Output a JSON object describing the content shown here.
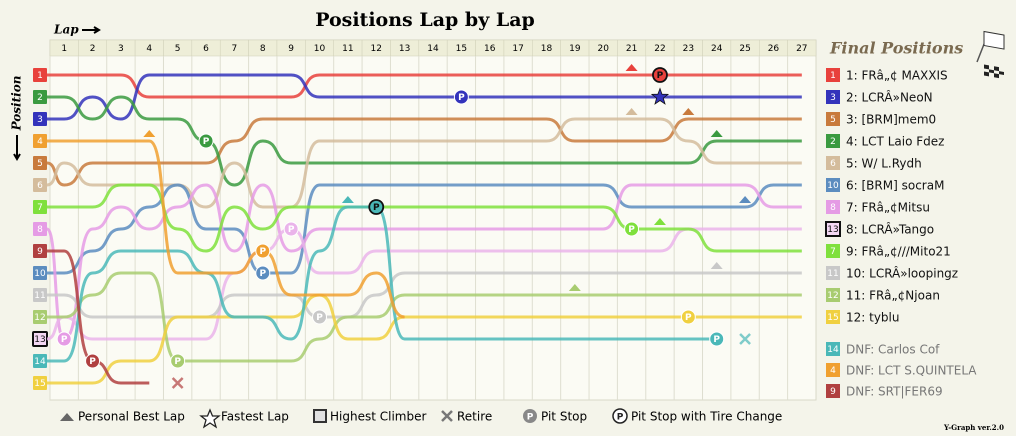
{
  "chart_data": {
    "type": "lap-chart",
    "title": "Positions Lap by Lap",
    "x_label": "Lap",
    "y_label": "Position",
    "legend_title": "Final Positions",
    "pit_symbol": "P",
    "footer": "Y-Graph ver.2.0",
    "x": [
      1,
      2,
      3,
      4,
      5,
      6,
      7,
      8,
      9,
      10,
      11,
      12,
      13,
      14,
      15,
      16,
      17,
      18,
      19,
      20,
      21,
      22,
      23,
      24,
      25,
      26,
      27
    ],
    "yticks": [
      1,
      2,
      3,
      4,
      5,
      6,
      7,
      8,
      9,
      10,
      11,
      12,
      13,
      14,
      15
    ],
    "key": [
      "Personal Best Lap",
      "Fastest Lap",
      "Highest Climber",
      "Retire",
      "Pit Stop",
      "Pit Stop with Tire Change"
    ],
    "series": [
      {
        "name": "1: FRâ„¢ MAXXIS",
        "grid": 1,
        "color": "#e8413c",
        "values": [
          1,
          1,
          1,
          2,
          2,
          2,
          2,
          2,
          2,
          1,
          1,
          1,
          1,
          1,
          1,
          1,
          1,
          1,
          1,
          1,
          1,
          1,
          1,
          1,
          1,
          1,
          1
        ],
        "best_laps": [
          21
        ],
        "tire_pit_laps": [
          22
        ]
      },
      {
        "name": "2: LCRÂ»NeoN",
        "grid": 3,
        "color": "#3333bb",
        "values": [
          3,
          2,
          3,
          1,
          1,
          1,
          1,
          1,
          1,
          2,
          2,
          2,
          2,
          2,
          2,
          2,
          2,
          2,
          2,
          2,
          2,
          2,
          2,
          2,
          2,
          2,
          2
        ],
        "pit_laps": [
          15
        ],
        "fastest_lap": 22
      },
      {
        "name": "3: [BRM]mem0",
        "grid": 5,
        "color": "#c87a3c",
        "values": [
          6,
          5,
          5,
          5,
          5,
          5,
          4,
          3,
          3,
          3,
          3,
          3,
          3,
          3,
          3,
          3,
          3,
          3,
          4,
          4,
          4,
          4,
          3,
          3,
          3,
          3,
          3
        ],
        "best_laps": [
          23
        ]
      },
      {
        "name": "4: LCT Laio Fdez",
        "grid": 2,
        "color": "#3a9a40",
        "values": [
          2,
          3,
          2,
          3,
          3,
          4,
          6,
          4,
          5,
          5,
          5,
          5,
          5,
          5,
          5,
          5,
          5,
          5,
          5,
          5,
          5,
          5,
          5,
          4,
          4,
          4,
          4
        ],
        "pit_laps": [
          6
        ],
        "best_laps": [
          24
        ]
      },
      {
        "name": "5: W/ L.Rydh",
        "grid": 6,
        "color": "#d4bc9c",
        "values": [
          5,
          6,
          6,
          6,
          6,
          7,
          5,
          7,
          7,
          4,
          4,
          4,
          4,
          4,
          4,
          4,
          4,
          4,
          3,
          3,
          3,
          3,
          4,
          5,
          5,
          5,
          5
        ],
        "best_laps": [
          21
        ]
      },
      {
        "name": "6: [BRM] socraM",
        "grid": 10,
        "color": "#5b8cbf",
        "values": [
          10,
          9,
          8,
          7,
          6,
          8,
          8,
          10,
          10,
          6,
          6,
          6,
          6,
          6,
          6,
          6,
          6,
          6,
          6,
          6,
          7,
          7,
          7,
          7,
          7,
          6,
          6
        ],
        "pit_laps": [
          8
        ],
        "best_laps": [
          25
        ]
      },
      {
        "name": "7: FRâ„¢Mitsu",
        "grid": 8,
        "color": "#e59be5",
        "values": [
          13,
          8,
          7,
          8,
          7,
          6,
          9,
          6,
          9,
          8,
          8,
          8,
          8,
          8,
          8,
          8,
          8,
          8,
          8,
          8,
          6,
          6,
          6,
          6,
          6,
          7,
          7
        ],
        "pit_laps": [
          1
        ]
      },
      {
        "name": "8: LCRÂ»Tango",
        "grid": 13,
        "color": "#eab4ea",
        "highest_climber": true,
        "values": [
          12,
          13,
          13,
          13,
          13,
          13,
          10,
          9,
          8,
          10,
          10,
          9,
          9,
          9,
          9,
          9,
          9,
          9,
          9,
          9,
          9,
          9,
          8,
          8,
          8,
          8,
          8
        ],
        "pit_laps": [
          9
        ]
      },
      {
        "name": "9: FRâ„¢///Mito21",
        "grid": 7,
        "color": "#7fe03c",
        "values": [
          7,
          7,
          6,
          6,
          8,
          9,
          7,
          8,
          7,
          7,
          7,
          7,
          7,
          7,
          7,
          7,
          7,
          7,
          7,
          7,
          8,
          8,
          8,
          9,
          9,
          9,
          9
        ],
        "pit_laps": [
          21
        ],
        "best_laps": [
          22
        ]
      },
      {
        "name": "10: LCRÂ»loopingz",
        "grid": 11,
        "color": "#c8c8c8",
        "values": [
          11,
          12,
          12,
          12,
          12,
          12,
          11,
          11,
          11,
          12,
          12,
          11,
          10,
          10,
          10,
          10,
          10,
          10,
          10,
          10,
          10,
          10,
          10,
          10,
          10,
          10,
          10
        ],
        "pit_laps": [
          10
        ],
        "best_laps": [
          24
        ]
      },
      {
        "name": "11: FRâ„¢Njoan",
        "grid": 12,
        "color": "#a8cc70",
        "values": [
          12,
          11,
          10,
          10,
          14,
          14,
          14,
          14,
          14,
          13,
          12,
          12,
          11,
          11,
          11,
          11,
          11,
          11,
          11,
          11,
          11,
          11,
          11,
          11,
          11,
          11,
          11
        ],
        "pit_laps": [
          5
        ],
        "best_laps": [
          19
        ]
      },
      {
        "name": "12: tyblu",
        "grid": 15,
        "color": "#f0d040",
        "values": [
          15,
          15,
          14,
          14,
          12,
          12,
          12,
          12,
          12,
          11,
          13,
          13,
          12,
          12,
          12,
          12,
          12,
          12,
          12,
          12,
          12,
          12,
          12,
          12,
          12,
          12,
          12
        ],
        "pit_laps": [
          23
        ]
      },
      {
        "name": "DNF: Carlos Cof",
        "grid": 14,
        "color": "#4ab8b8",
        "values": [
          14,
          10,
          9,
          9,
          9,
          10,
          12,
          12,
          13,
          9,
          7,
          7,
          13,
          13,
          13,
          13,
          13,
          13,
          13,
          13,
          13,
          13,
          13,
          13,
          null,
          null,
          null
        ],
        "pit_laps": [
          24
        ],
        "tire_pit_laps": [
          12
        ],
        "best_laps": [
          11
        ],
        "retired_lap": 25
      },
      {
        "name": "DNF: LCT S.QUINTELA",
        "grid": 4,
        "color": "#f0a030",
        "values": [
          4,
          4,
          4,
          4,
          10,
          10,
          10,
          9,
          11,
          11,
          11,
          10,
          12,
          null,
          null,
          null,
          null,
          null,
          null,
          null,
          null,
          null,
          null,
          null,
          null,
          null,
          null
        ],
        "pit_laps": [
          8
        ],
        "best_laps": [
          4
        ]
      },
      {
        "name": "DNF: SRT|FER69",
        "grid": 9,
        "color": "#b04040",
        "values": [
          9,
          14,
          15,
          15,
          null,
          null,
          null,
          null,
          null,
          null,
          null,
          null,
          null,
          null,
          null,
          null,
          null,
          null,
          null,
          null,
          null,
          null,
          null,
          null,
          null,
          null,
          null
        ],
        "pit_laps": [
          2
        ],
        "retired_lap": 5
      }
    ]
  }
}
